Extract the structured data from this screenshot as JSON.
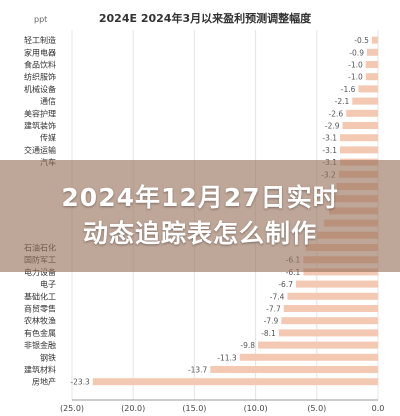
{
  "chart_data": {
    "type": "bar",
    "title": "2024E 2024年3月以来盈利预测调整幅度",
    "ylabel": "ppt",
    "orientation": "horizontal",
    "xlim": [
      -25,
      0
    ],
    "xticks": [
      "(25.0)",
      "(20.0)",
      "(15.0)",
      "(10.0)",
      "(5.0)",
      "0.0"
    ],
    "bar_color": "#f3c9b4",
    "categories": [
      "轻工制造",
      "家用电器",
      "食品饮料",
      "纺织服饰",
      "机械设备",
      "通信",
      "美容护理",
      "建筑装饰",
      "传媒",
      "交通运输",
      "汽车",
      "",
      "",
      "",
      "",
      "",
      "",
      "石油石化",
      "国防军工",
      "电力设备",
      "电子",
      "基础化工",
      "商贸零售",
      "农林牧渔",
      "有色金属",
      "非银金融",
      "钢铁",
      "建筑材料",
      "房地产"
    ],
    "values": [
      -0.5,
      -0.9,
      -1.0,
      -1.0,
      -1.6,
      -2.1,
      -2.6,
      -2.9,
      -3.1,
      -3.1,
      -3.1,
      -3.2,
      -3.4,
      -3.6,
      -4.0,
      -4.4,
      -5.0,
      -5.9,
      -6.1,
      -6.1,
      -6.7,
      -7.4,
      -7.7,
      -7.9,
      -8.1,
      -9.8,
      -11.3,
      -13.7,
      -23.3
    ],
    "value_labels": [
      "-0.5",
      "-0.9",
      "-1.0",
      "-1.0",
      "-1.6",
      "-2.1",
      "-2.6",
      "-2.9",
      "-3.1",
      "-3.1",
      "-3.1",
      "-3.2",
      "",
      "",
      "",
      "",
      "",
      "",
      "-6.1",
      "-6.1",
      "-6.7",
      "-7.4",
      "-7.7",
      "-7.9",
      "-8.1",
      "-9.8",
      "-11.3",
      "-13.7",
      "-23.3"
    ]
  },
  "overlay": {
    "line1": "2024年12月27日实时",
    "line2": "动态追踪表怎么制作"
  }
}
